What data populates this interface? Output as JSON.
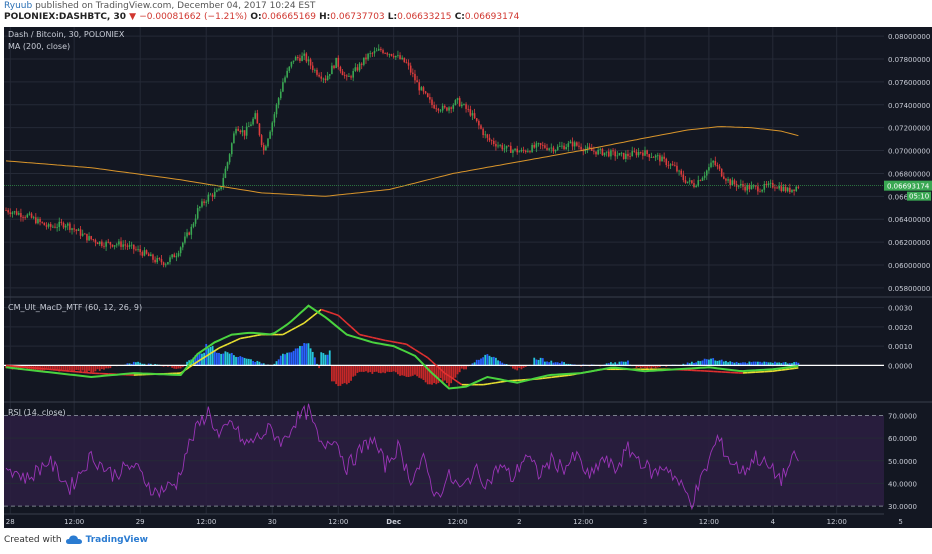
{
  "header": {
    "author": "Ryuub",
    "published_text": "published on TradingView.com, December 04, 2017 10:24 EST",
    "symbol": "POLONIEX:DASHBTC, 30",
    "change": "−0.00081662 (−1.21%)",
    "open_label": "O:",
    "open": "0.06665169",
    "high_label": "H:",
    "high": "0.06737703",
    "low_label": "L:",
    "low": "0.06633215",
    "close_label": "C:",
    "close": "0.06693174"
  },
  "footer": {
    "created_with": "Created with",
    "brand": "TradingView"
  },
  "colors": {
    "background": "#131722",
    "grid": "#252a37",
    "up": "#3aa853",
    "down": "#dd3d3d",
    "ma": "#d9952b",
    "macd_fast": "#4ad33f",
    "macd_slow_down": "#e03030",
    "macd_slow_up": "#e8e030",
    "hist_pos": "#2962ff",
    "hist_pos_light": "#26c6da",
    "hist_neg": "#c62828",
    "rsi": "#9b35b8",
    "rsi_band": "#2d1f42"
  },
  "chart_data": [
    {
      "type": "candlestick",
      "title": "Dash / Bitcoin, 30, POLONIEX",
      "indicator": "MA (200, close)",
      "last_price": "0.06693174",
      "countdown": "05:10",
      "ylim": [
        0.0572,
        0.0808
      ],
      "y_ticks": [
        "0.08000000",
        "0.07800000",
        "0.07600000",
        "0.07400000",
        "0.07200000",
        "0.07000000",
        "0.06800000",
        "0.06600000",
        "0.06400000",
        "0.06200000",
        "0.06000000",
        "0.05800000"
      ],
      "y_tick_values": [
        0.08,
        0.078,
        0.076,
        0.074,
        0.072,
        0.07,
        0.068,
        0.066,
        0.064,
        0.062,
        0.06,
        0.058
      ],
      "close_anchors": [
        [
          0,
          0.0648
        ],
        [
          10,
          0.0643
        ],
        [
          20,
          0.0633
        ],
        [
          28,
          0.0636
        ],
        [
          38,
          0.0624
        ],
        [
          45,
          0.0619
        ],
        [
          55,
          0.0618
        ],
        [
          65,
          0.061
        ],
        [
          70,
          0.0604
        ],
        [
          75,
          0.0602
        ],
        [
          80,
          0.061
        ],
        [
          87,
          0.0632
        ],
        [
          90,
          0.0648
        ],
        [
          95,
          0.066
        ],
        [
          100,
          0.0664
        ],
        [
          104,
          0.069
        ],
        [
          108,
          0.0722
        ],
        [
          112,
          0.0715
        ],
        [
          117,
          0.073
        ],
        [
          121,
          0.07
        ],
        [
          125,
          0.0725
        ],
        [
          130,
          0.076
        ],
        [
          135,
          0.078
        ],
        [
          140,
          0.0782
        ],
        [
          145,
          0.077
        ],
        [
          150,
          0.0763
        ],
        [
          155,
          0.0778
        ],
        [
          160,
          0.0762
        ],
        [
          165,
          0.0772
        ],
        [
          170,
          0.0783
        ],
        [
          176,
          0.0788
        ],
        [
          182,
          0.0784
        ],
        [
          188,
          0.0776
        ],
        [
          194,
          0.0755
        ],
        [
          200,
          0.074
        ],
        [
          206,
          0.0736
        ],
        [
          212,
          0.0743
        ],
        [
          218,
          0.0733
        ],
        [
          226,
          0.071
        ],
        [
          234,
          0.0702
        ],
        [
          242,
          0.0699
        ],
        [
          250,
          0.0704
        ],
        [
          258,
          0.0702
        ],
        [
          266,
          0.0706
        ],
        [
          274,
          0.07
        ],
        [
          282,
          0.0698
        ],
        [
          290,
          0.0695
        ],
        [
          298,
          0.0699
        ],
        [
          306,
          0.0694
        ],
        [
          314,
          0.0685
        ],
        [
          318,
          0.0675
        ],
        [
          323,
          0.067
        ],
        [
          328,
          0.068
        ],
        [
          332,
          0.069
        ],
        [
          336,
          0.068
        ],
        [
          340,
          0.0672
        ],
        [
          347,
          0.0668
        ],
        [
          354,
          0.0667
        ],
        [
          361,
          0.067
        ],
        [
          367,
          0.0665
        ],
        [
          372,
          0.0669
        ]
      ],
      "ma_anchors": [
        [
          0,
          0.0691
        ],
        [
          40,
          0.0685
        ],
        [
          80,
          0.0675
        ],
        [
          120,
          0.0663
        ],
        [
          150,
          0.066
        ],
        [
          180,
          0.0666
        ],
        [
          210,
          0.068
        ],
        [
          240,
          0.069
        ],
        [
          270,
          0.07
        ],
        [
          300,
          0.0711
        ],
        [
          320,
          0.0718
        ],
        [
          335,
          0.0721
        ],
        [
          350,
          0.072
        ],
        [
          364,
          0.0717
        ],
        [
          374,
          0.0712
        ]
      ],
      "n_candles": 373
    },
    {
      "type": "macd",
      "title": "CM_Ult_MacD_MTF (60, 12, 26, 9)",
      "ylim": [
        -0.0019,
        0.0035
      ],
      "y_ticks": [
        "0.0030",
        "0.0020",
        "0.0010",
        "0.0000"
      ],
      "y_tick_values": [
        0.003,
        0.002,
        0.001,
        0.0
      ],
      "fast_anchors": [
        [
          0,
          -0.0001
        ],
        [
          40,
          -0.0006
        ],
        [
          60,
          -0.0004
        ],
        [
          82,
          -0.0005
        ],
        [
          90,
          0.0006
        ],
        [
          98,
          0.0012
        ],
        [
          106,
          0.0016
        ],
        [
          115,
          0.0017
        ],
        [
          125,
          0.0016
        ],
        [
          133,
          0.0022
        ],
        [
          142,
          0.0031
        ],
        [
          150,
          0.0025
        ],
        [
          160,
          0.0016
        ],
        [
          172,
          0.0012
        ],
        [
          182,
          0.001
        ],
        [
          192,
          0.0005
        ],
        [
          200,
          -0.0004
        ],
        [
          208,
          -0.0012
        ],
        [
          216,
          -0.0011
        ],
        [
          226,
          -0.0006
        ],
        [
          240,
          -0.0009
        ],
        [
          255,
          -0.0005
        ],
        [
          270,
          -0.0004
        ],
        [
          285,
          -0.0001
        ],
        [
          300,
          -0.0003
        ],
        [
          315,
          -0.0002
        ],
        [
          330,
          -0.0001
        ],
        [
          345,
          -0.0003
        ],
        [
          360,
          -0.0002
        ],
        [
          374,
          0.0
        ]
      ],
      "slow_anchors": [
        [
          0,
          0.0
        ],
        [
          40,
          -0.0004
        ],
        [
          60,
          -0.0005
        ],
        [
          82,
          -0.0004
        ],
        [
          90,
          0.0002
        ],
        [
          100,
          0.0009
        ],
        [
          110,
          0.0014
        ],
        [
          120,
          0.0016
        ],
        [
          130,
          0.0016
        ],
        [
          140,
          0.0022
        ],
        [
          148,
          0.0029
        ],
        [
          156,
          0.0026
        ],
        [
          166,
          0.0016
        ],
        [
          178,
          0.0013
        ],
        [
          188,
          0.0011
        ],
        [
          198,
          0.0004
        ],
        [
          206,
          -0.0004
        ],
        [
          214,
          -0.001
        ],
        [
          224,
          -0.001
        ],
        [
          236,
          -0.0008
        ],
        [
          250,
          -0.0007
        ],
        [
          265,
          -0.0005
        ],
        [
          280,
          -0.0002
        ],
        [
          296,
          -0.0002
        ],
        [
          312,
          -0.0002
        ],
        [
          330,
          -0.0003
        ],
        [
          345,
          -0.0004
        ],
        [
          360,
          -0.0003
        ],
        [
          374,
          -0.0001
        ]
      ],
      "hist_peaks": [
        [
          96,
          0.0012
        ],
        [
          104,
          0.0008
        ],
        [
          110,
          0.0006
        ],
        [
          150,
          0.0008
        ],
        [
          205,
          -0.001
        ],
        [
          250,
          0.0004
        ],
        [
          290,
          0.0003
        ],
        [
          330,
          0.0004
        ],
        [
          356,
          0.0002
        ]
      ]
    },
    {
      "type": "line",
      "title": "RSI (14, close)",
      "ylim": [
        26.5,
        75.5
      ],
      "y_ticks": [
        "70.0000",
        "60.0000",
        "50.0000",
        "40.0000",
        "30.0000"
      ],
      "y_tick_values": [
        70,
        60,
        50,
        40,
        30
      ],
      "band": [
        30,
        70
      ],
      "rsi_anchors": [
        [
          0,
          48
        ],
        [
          10,
          42
        ],
        [
          20,
          50
        ],
        [
          30,
          38
        ],
        [
          40,
          52
        ],
        [
          50,
          44
        ],
        [
          60,
          48
        ],
        [
          70,
          36
        ],
        [
          80,
          40
        ],
        [
          85,
          55
        ],
        [
          90,
          65
        ],
        [
          95,
          72
        ],
        [
          100,
          60
        ],
        [
          106,
          67
        ],
        [
          112,
          57
        ],
        [
          118,
          60
        ],
        [
          124,
          64
        ],
        [
          130,
          58
        ],
        [
          136,
          68
        ],
        [
          142,
          72
        ],
        [
          148,
          56
        ],
        [
          154,
          61
        ],
        [
          160,
          47
        ],
        [
          166,
          54
        ],
        [
          172,
          60
        ],
        [
          178,
          48
        ],
        [
          184,
          56
        ],
        [
          190,
          42
        ],
        [
          196,
          50
        ],
        [
          202,
          34
        ],
        [
          208,
          43
        ],
        [
          214,
          37
        ],
        [
          220,
          46
        ],
        [
          226,
          40
        ],
        [
          232,
          48
        ],
        [
          238,
          42
        ],
        [
          244,
          53
        ],
        [
          250,
          44
        ],
        [
          256,
          50
        ],
        [
          262,
          47
        ],
        [
          268,
          52
        ],
        [
          274,
          42
        ],
        [
          280,
          51
        ],
        [
          286,
          46
        ],
        [
          292,
          55
        ],
        [
          298,
          50
        ],
        [
          304,
          44
        ],
        [
          310,
          48
        ],
        [
          316,
          40
        ],
        [
          322,
          32
        ],
        [
          328,
          45
        ],
        [
          334,
          60
        ],
        [
          340,
          50
        ],
        [
          346,
          45
        ],
        [
          352,
          52
        ],
        [
          358,
          47
        ],
        [
          364,
          42
        ],
        [
          370,
          51
        ],
        [
          374,
          52
        ]
      ]
    }
  ],
  "x_axis": {
    "ticks": [
      {
        "label": "28",
        "idx": 2
      },
      {
        "label": "12:00",
        "idx": 32
      },
      {
        "label": "29",
        "idx": 63
      },
      {
        "label": "12:00",
        "idx": 94
      },
      {
        "label": "30",
        "idx": 125
      },
      {
        "label": "12:00",
        "idx": 156
      },
      {
        "label": "Dec",
        "idx": 182
      },
      {
        "label": "12:00",
        "idx": 212
      },
      {
        "label": "2",
        "idx": 241
      },
      {
        "label": "12:00",
        "idx": 271
      },
      {
        "label": "3",
        "idx": 300
      },
      {
        "label": "12:00",
        "idx": 330
      },
      {
        "label": "4",
        "idx": 360
      },
      {
        "label": "12:00",
        "idx": 390
      },
      {
        "label": "5",
        "idx": 420
      }
    ]
  }
}
